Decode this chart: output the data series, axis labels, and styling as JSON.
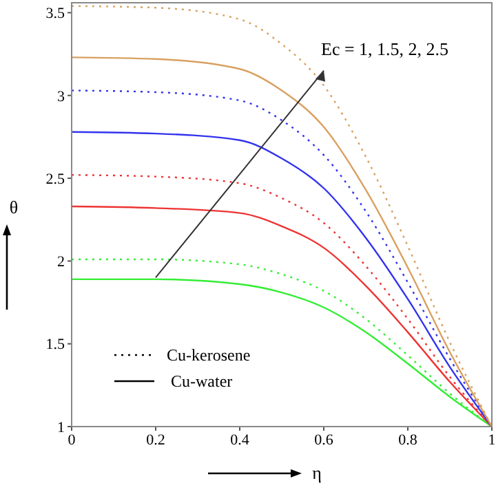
{
  "chart_data": {
    "type": "line",
    "xlabel": "η",
    "ylabel": "θ",
    "x": [
      0,
      0.2,
      0.4,
      0.5,
      0.6,
      0.7,
      0.8,
      0.9,
      1
    ],
    "series": [
      {
        "color": "#33ee33",
        "line_style": "solid",
        "values": [
          1.89,
          1.89,
          1.86,
          1.81,
          1.72,
          1.57,
          1.38,
          1.18,
          1
        ]
      },
      {
        "color": "#33ee33",
        "line_style": "dotted",
        "values": [
          2.01,
          2.01,
          1.98,
          1.92,
          1.82,
          1.65,
          1.43,
          1.2,
          1
        ]
      },
      {
        "color": "#ee3333",
        "line_style": "solid",
        "values": [
          2.33,
          2.32,
          2.29,
          2.21,
          2.08,
          1.85,
          1.57,
          1.27,
          1
        ]
      },
      {
        "color": "#ee3333",
        "line_style": "dotted",
        "values": [
          2.52,
          2.51,
          2.47,
          2.38,
          2.23,
          1.97,
          1.65,
          1.3,
          1
        ]
      },
      {
        "color": "#3333ee",
        "line_style": "solid",
        "values": [
          2.78,
          2.77,
          2.73,
          2.62,
          2.44,
          2.14,
          1.77,
          1.36,
          1
        ]
      },
      {
        "color": "#3333ee",
        "line_style": "dotted",
        "values": [
          3.03,
          3.02,
          2.97,
          2.85,
          2.64,
          2.3,
          1.87,
          1.41,
          1
        ]
      },
      {
        "color": "#d9a060",
        "line_style": "solid",
        "values": [
          3.23,
          3.22,
          3.16,
          3.03,
          2.81,
          2.43,
          1.96,
          1.45,
          1
        ]
      },
      {
        "color": "#d9a060",
        "line_style": "dotted",
        "values": [
          3.54,
          3.53,
          3.46,
          3.31,
          3.06,
          2.63,
          2.09,
          1.51,
          1
        ]
      }
    ],
    "xlim": [
      0,
      1
    ],
    "xticks": [
      0,
      0.2,
      0.4,
      0.6,
      0.8,
      1
    ],
    "ylim": [
      1,
      3.56
    ],
    "yticks": [
      1,
      1.5,
      2,
      2.5,
      3,
      3.5
    ],
    "grid": false,
    "marker": "none",
    "annotations": [
      "Ec = 1, 1.5, 2, 2.5",
      "Cu-kerosene",
      "Cu-water"
    ]
  }
}
